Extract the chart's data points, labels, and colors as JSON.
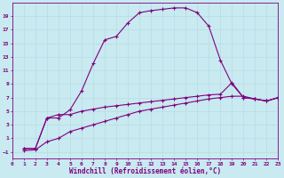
{
  "xlabel": "Windchill (Refroidissement éolien,°C)",
  "background_color": "#c8eaf0",
  "grid_color": "#b8dce6",
  "line_color": "#800080",
  "xlim": [
    0,
    23
  ],
  "ylim": [
    -2,
    21
  ],
  "xticks": [
    0,
    1,
    2,
    3,
    4,
    5,
    6,
    7,
    8,
    9,
    10,
    11,
    12,
    13,
    14,
    15,
    16,
    17,
    18,
    19,
    20,
    21,
    22,
    23
  ],
  "yticks": [
    -1,
    1,
    3,
    5,
    7,
    9,
    11,
    13,
    15,
    17,
    19
  ],
  "line1_x": [
    1,
    2,
    3,
    4,
    5,
    6,
    7,
    8,
    9,
    10,
    11,
    12,
    13,
    14,
    15,
    16,
    17,
    18,
    19,
    20,
    21,
    22,
    23
  ],
  "line1_y": [
    -0.5,
    -0.5,
    4,
    4,
    5.2,
    8,
    12,
    15.5,
    16,
    18,
    19.5,
    19.8,
    20,
    20.2,
    20.2,
    19.5,
    17.5,
    12.5,
    9,
    7,
    6.8,
    6.5,
    7
  ],
  "line2_x": [
    1,
    2,
    3,
    4,
    5,
    6,
    7,
    8,
    9,
    10,
    11,
    12,
    13,
    14,
    15,
    16,
    17,
    18,
    19,
    20,
    21,
    22,
    23
  ],
  "line2_y": [
    -0.5,
    -0.5,
    4,
    4.5,
    4.5,
    5,
    5.3,
    5.6,
    5.8,
    6,
    6.2,
    6.4,
    6.6,
    6.8,
    7,
    7.2,
    7.4,
    7.5,
    9.2,
    7,
    6.8,
    6.5,
    7
  ],
  "line3_x": [
    1,
    2,
    3,
    4,
    5,
    6,
    7,
    8,
    9,
    10,
    11,
    12,
    13,
    14,
    15,
    16,
    17,
    18,
    19,
    20,
    21,
    22,
    23
  ],
  "line3_y": [
    -0.8,
    -0.7,
    0.5,
    1,
    2,
    2.5,
    3,
    3.5,
    4,
    4.5,
    5,
    5.3,
    5.6,
    5.9,
    6.2,
    6.5,
    6.8,
    7,
    7.2,
    7.2,
    6.8,
    6.5,
    7
  ],
  "xlabel_fontsize": 5.5,
  "tick_fontsize": 4.5,
  "line_width": 0.8,
  "marker_size": 2.5
}
